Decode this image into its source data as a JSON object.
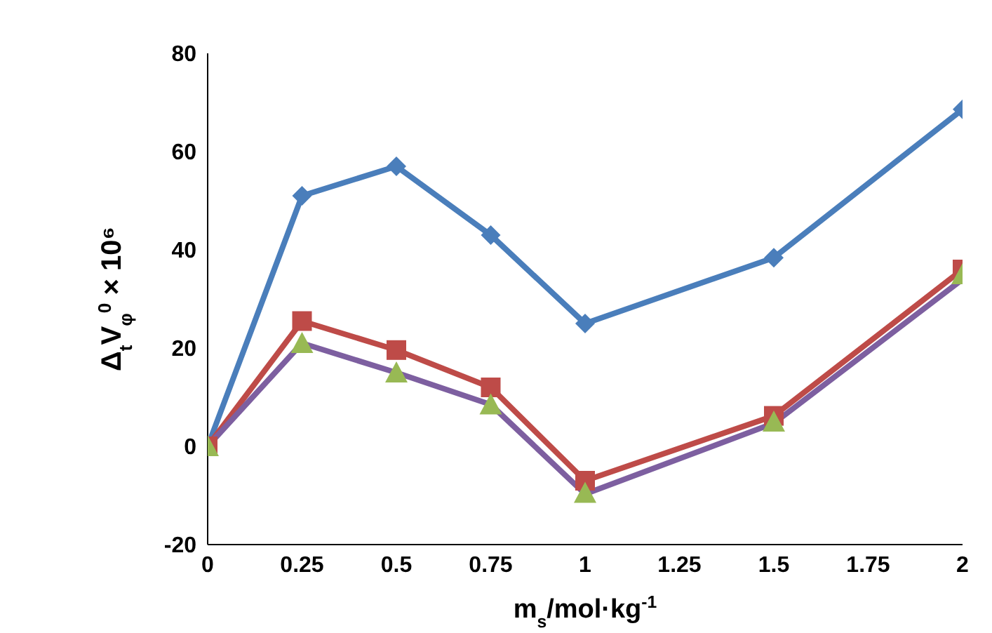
{
  "chart_data": {
    "type": "line",
    "xlabel": "m$_{s}$/mol·kg$^{-1}$",
    "ylabel": "Δ$_{t}$V$_{φ}$$^{0}$ × 10⁶",
    "xlim": [
      0,
      2
    ],
    "xticks": [
      0,
      0.25,
      0.5,
      0.75,
      1,
      1.25,
      1.5,
      1.75,
      2
    ],
    "ylim": [
      -20,
      80
    ],
    "yticks": [
      -20,
      0,
      20,
      40,
      60,
      80
    ],
    "x": [
      0,
      0.25,
      0.5,
      0.75,
      1,
      1.5,
      2
    ],
    "series": [
      {
        "color": "#4a7ebb",
        "marker": "diamond",
        "values": [
          0,
          51,
          57,
          43,
          25,
          38.4,
          68.6
        ]
      },
      {
        "color": "#be4b48",
        "marker": "square",
        "values": [
          0,
          25.5,
          19.6,
          12,
          -7,
          6.2,
          36
        ]
      },
      {
        "color": "#7d5fa0",
        "marker": "none",
        "values": [
          0,
          21,
          15,
          8.5,
          -9.7,
          4.7,
          34
        ]
      },
      {
        "type": "scatter",
        "color": "#98b954",
        "marker": "triangle",
        "values": [
          0,
          21,
          15,
          8.5,
          -9.5,
          5,
          35
        ]
      }
    ],
    "grid": false,
    "line_style": "solid"
  }
}
